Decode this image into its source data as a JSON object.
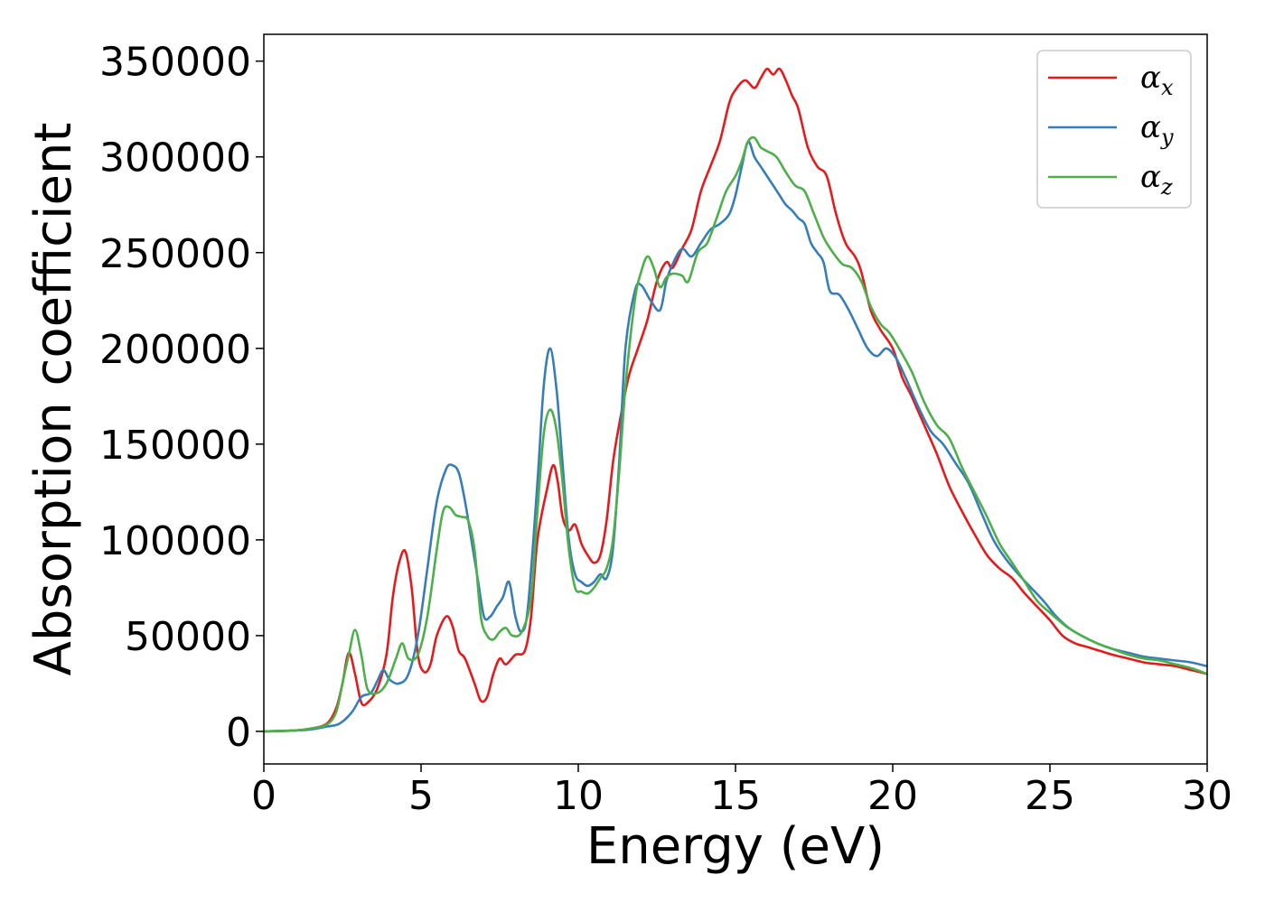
{
  "chart_data": {
    "type": "line",
    "xlabel": "Energy (eV)",
    "ylabel": "Absorption coefficient",
    "xlim": [
      0,
      30
    ],
    "ylim": [
      -17000,
      364000
    ],
    "xticks": [
      "0",
      "5",
      "10",
      "15",
      "20",
      "25",
      "30"
    ],
    "yticks": [
      "0",
      "50000",
      "100000",
      "150000",
      "200000",
      "250000",
      "300000",
      "350000"
    ],
    "grid": false,
    "legend_position": "top-right",
    "series": [
      {
        "name": "α",
        "subscript": "x",
        "color": "#e41a1c",
        "x": [
          0,
          1,
          1.5,
          2,
          2.3,
          2.5,
          2.7,
          2.9,
          3.1,
          3.3,
          3.6,
          3.9,
          4.1,
          4.3,
          4.5,
          4.7,
          4.9,
          5.1,
          5.3,
          5.5,
          5.8,
          6.0,
          6.2,
          6.4,
          6.7,
          6.9,
          7.1,
          7.3,
          7.5,
          7.7,
          8.0,
          8.3,
          8.5,
          8.7,
          9.0,
          9.2,
          9.35,
          9.5,
          9.7,
          9.9,
          10.1,
          10.3,
          10.5,
          10.7,
          10.9,
          11.1,
          11.3,
          11.6,
          11.9,
          12.2,
          12.5,
          12.8,
          13.0,
          13.3,
          13.6,
          13.9,
          14.2,
          14.5,
          14.8,
          15.0,
          15.3,
          15.6,
          15.8,
          16.0,
          16.2,
          16.4,
          16.6,
          16.8,
          17.0,
          17.3,
          17.6,
          17.9,
          18.2,
          18.5,
          18.8,
          19.0,
          19.3,
          19.6,
          20.0,
          20.3,
          20.6,
          21.0,
          21.4,
          21.8,
          22.2,
          22.6,
          23.0,
          23.4,
          23.8,
          24.2,
          24.6,
          25.0,
          25.4,
          25.8,
          26.2,
          26.6,
          27.0,
          27.5,
          28.0,
          28.5,
          29.0,
          29.5,
          30.0
        ],
        "y": [
          0,
          500,
          1500,
          4000,
          12000,
          25000,
          41000,
          30000,
          15000,
          15000,
          22000,
          40000,
          70000,
          88000,
          94000,
          75000,
          40000,
          31000,
          35000,
          50000,
          60000,
          55000,
          42000,
          38000,
          25000,
          16000,
          18000,
          30000,
          38000,
          35000,
          40000,
          42000,
          60000,
          100000,
          126000,
          139000,
          130000,
          112000,
          105000,
          108000,
          98000,
          92000,
          88000,
          92000,
          110000,
          140000,
          160000,
          185000,
          200000,
          215000,
          235000,
          245000,
          242000,
          252000,
          262000,
          282000,
          295000,
          308000,
          328000,
          335000,
          340000,
          336000,
          341000,
          346000,
          343000,
          346000,
          340000,
          332000,
          325000,
          305000,
          295000,
          290000,
          270000,
          255000,
          248000,
          240000,
          220000,
          210000,
          200000,
          185000,
          175000,
          160000,
          145000,
          128000,
          115000,
          103000,
          92000,
          85000,
          80000,
          72000,
          65000,
          58000,
          50000,
          46000,
          44000,
          42000,
          40000,
          38000,
          36000,
          35000,
          34000,
          32000,
          30000
        ]
      },
      {
        "name": "α",
        "subscript": "y",
        "color": "#377eb8",
        "x": [
          0,
          1,
          1.5,
          2,
          2.4,
          2.8,
          3.1,
          3.4,
          3.6,
          3.8,
          4.0,
          4.3,
          4.6,
          4.9,
          5.2,
          5.5,
          5.8,
          6.0,
          6.2,
          6.4,
          6.6,
          6.8,
          7.0,
          7.2,
          7.4,
          7.6,
          7.8,
          8.0,
          8.2,
          8.4,
          8.7,
          8.9,
          9.1,
          9.3,
          9.5,
          9.7,
          9.9,
          10.1,
          10.3,
          10.5,
          10.7,
          10.9,
          11.1,
          11.3,
          11.5,
          11.8,
          12.0,
          12.3,
          12.6,
          12.8,
          13.0,
          13.3,
          13.6,
          13.9,
          14.2,
          14.5,
          14.8,
          15.0,
          15.2,
          15.4,
          15.6,
          15.8,
          16.0,
          16.2,
          16.4,
          16.6,
          16.8,
          17.0,
          17.2,
          17.4,
          17.6,
          17.8,
          18.0,
          18.3,
          18.6,
          18.9,
          19.2,
          19.5,
          19.8,
          20.1,
          20.4,
          20.8,
          21.2,
          21.6,
          22.0,
          22.4,
          22.8,
          23.2,
          23.6,
          24.0,
          24.4,
          24.8,
          25.2,
          25.6,
          26.0,
          26.5,
          27.0,
          27.5,
          28.0,
          28.5,
          29.0,
          29.5,
          30.0
        ],
        "y": [
          0,
          500,
          1000,
          2500,
          4000,
          10000,
          18000,
          20000,
          26000,
          32000,
          27000,
          25000,
          30000,
          50000,
          85000,
          120000,
          137000,
          139000,
          135000,
          120000,
          100000,
          80000,
          60000,
          60000,
          65000,
          70000,
          78000,
          60000,
          52000,
          65000,
          130000,
          180000,
          200000,
          180000,
          140000,
          100000,
          82000,
          78000,
          76000,
          78000,
          82000,
          80000,
          95000,
          140000,
          200000,
          230000,
          233000,
          225000,
          220000,
          235000,
          244000,
          252000,
          248000,
          255000,
          262000,
          265000,
          270000,
          280000,
          295000,
          308000,
          300000,
          295000,
          290000,
          285000,
          280000,
          275000,
          272000,
          268000,
          265000,
          255000,
          250000,
          245000,
          230000,
          228000,
          220000,
          210000,
          200000,
          196000,
          200000,
          195000,
          185000,
          170000,
          157000,
          150000,
          140000,
          130000,
          115000,
          100000,
          90000,
          82000,
          75000,
          68000,
          60000,
          54000,
          50000,
          46000,
          43000,
          41000,
          39000,
          38000,
          37000,
          36000,
          34000
        ]
      },
      {
        "name": "α",
        "subscript": "z",
        "color": "#4daf4a",
        "x": [
          0,
          1,
          1.5,
          2,
          2.3,
          2.5,
          2.7,
          2.9,
          3.1,
          3.3,
          3.6,
          3.9,
          4.2,
          4.4,
          4.6,
          4.9,
          5.2,
          5.5,
          5.7,
          5.9,
          6.1,
          6.3,
          6.5,
          6.7,
          6.9,
          7.1,
          7.3,
          7.5,
          7.7,
          7.9,
          8.2,
          8.5,
          8.7,
          8.9,
          9.1,
          9.3,
          9.5,
          9.7,
          9.9,
          10.1,
          10.3,
          10.5,
          10.7,
          10.9,
          11.1,
          11.3,
          11.5,
          11.8,
          12.0,
          12.2,
          12.4,
          12.6,
          12.8,
          13.0,
          13.3,
          13.5,
          13.8,
          14.1,
          14.4,
          14.7,
          15.0,
          15.2,
          15.4,
          15.6,
          15.8,
          16.0,
          16.3,
          16.6,
          16.9,
          17.2,
          17.5,
          17.8,
          18.1,
          18.4,
          18.7,
          19.0,
          19.3,
          19.6,
          19.9,
          20.2,
          20.6,
          21.0,
          21.4,
          21.8,
          22.2,
          22.6,
          23.0,
          23.4,
          23.8,
          24.2,
          24.6,
          25.0,
          25.5,
          26.0,
          26.5,
          27.0,
          27.5,
          28.0,
          28.5,
          29.0,
          29.5,
          30.0
        ],
        "y": [
          0,
          500,
          1500,
          3500,
          10000,
          25000,
          40000,
          53000,
          40000,
          22000,
          20000,
          25000,
          38000,
          46000,
          38000,
          40000,
          60000,
          95000,
          115000,
          117000,
          113000,
          112000,
          110000,
          95000,
          60000,
          50000,
          48000,
          52000,
          54000,
          50000,
          52000,
          70000,
          115000,
          155000,
          168000,
          158000,
          130000,
          95000,
          75000,
          73000,
          72000,
          75000,
          80000,
          85000,
          100000,
          135000,
          180000,
          225000,
          240000,
          248000,
          242000,
          232000,
          237000,
          239000,
          238000,
          235000,
          250000,
          255000,
          268000,
          282000,
          290000,
          298000,
          308000,
          310000,
          305000,
          303000,
          300000,
          292000,
          285000,
          282000,
          270000,
          258000,
          250000,
          244000,
          242000,
          235000,
          222000,
          213000,
          208000,
          200000,
          188000,
          172000,
          160000,
          153000,
          138000,
          125000,
          112000,
          98000,
          88000,
          78000,
          68000,
          62000,
          55000,
          50000,
          46000,
          43000,
          40000,
          38000,
          37000,
          35000,
          33000,
          30000
        ]
      }
    ]
  }
}
